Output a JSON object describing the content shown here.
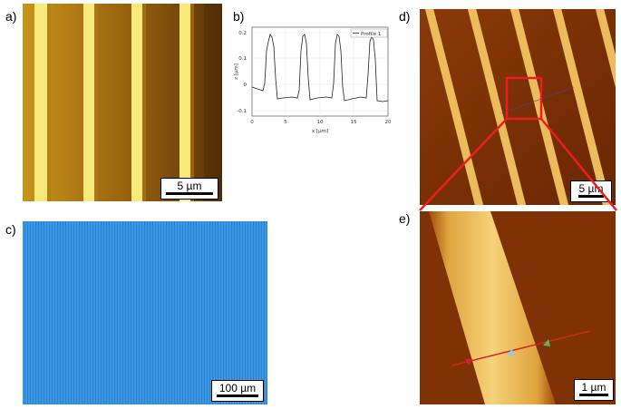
{
  "panels": {
    "a": {
      "letter": "a)",
      "scale": "5 µm"
    },
    "b": {
      "letter": "b)",
      "legend": "Profile 1",
      "ylabel": "z [µm]",
      "xlabel": "x [µm]",
      "yticks": [
        "0.2",
        "0.1",
        "0",
        "-0.1"
      ],
      "xticks": [
        "0",
        "5",
        "10",
        "15",
        "20"
      ]
    },
    "c": {
      "letter": "c)",
      "scale": "100 µm"
    },
    "d": {
      "letter": "d)",
      "scale": "5 µm"
    },
    "e": {
      "letter": "e)",
      "scale": "1 µm"
    }
  },
  "colors": {
    "afm_dark": "#7a2e05",
    "afm_light": "#f3c25e",
    "optical": "#2a8fe0",
    "box": "#ee1c1c"
  }
}
